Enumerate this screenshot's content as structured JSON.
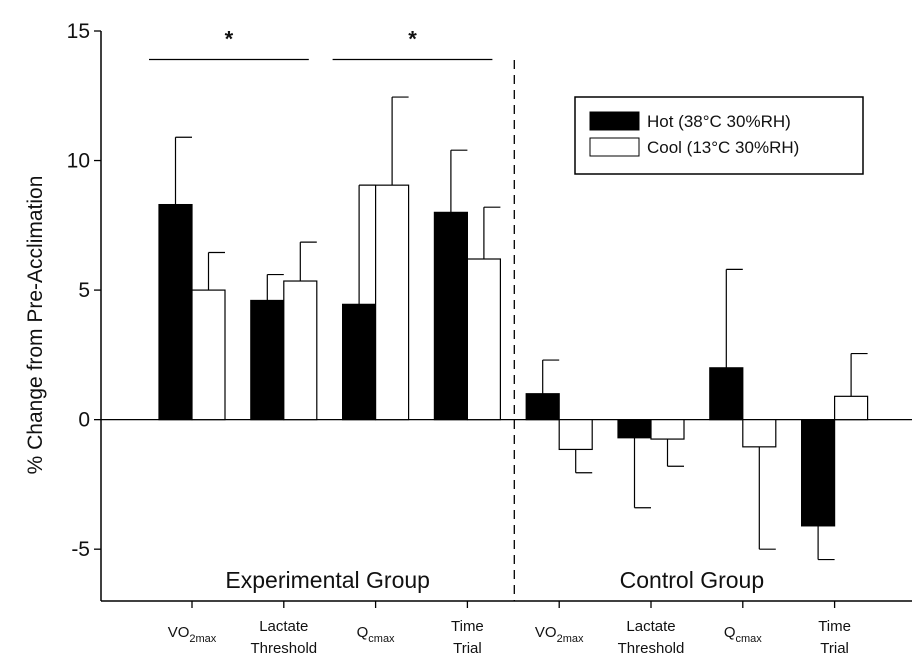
{
  "chart_data": {
    "type": "bar",
    "ylabel": "% Change from Pre-Acclimation",
    "xlabel": "",
    "ylim": [
      -7,
      15
    ],
    "yticks": [
      -5,
      0,
      5,
      10,
      15
    ],
    "groups": [
      "Experimental Group",
      "Control Group"
    ],
    "categories": [
      {
        "label": "VO",
        "sub": "2max"
      },
      {
        "label": "Lactate\nThreshold",
        "sub": ""
      },
      {
        "label": "Q",
        "sub": "cmax"
      },
      {
        "label": "Time\nTrial",
        "sub": ""
      },
      {
        "label": "VO",
        "sub": "2max"
      },
      {
        "label": "Lactate\nThreshold",
        "sub": ""
      },
      {
        "label": "Q",
        "sub": "cmax"
      },
      {
        "label": "Time\nTrial",
        "sub": ""
      }
    ],
    "series": [
      {
        "name": "Hot (38°C 30%RH)",
        "color": "#000000",
        "values": [
          8.3,
          4.6,
          4.45,
          8.0,
          1.0,
          -0.7,
          2.0,
          -4.1
        ],
        "errors": [
          2.6,
          1.0,
          4.6,
          2.4,
          1.3,
          2.7,
          3.8,
          1.3
        ]
      },
      {
        "name": "Cool (13°C 30%RH)",
        "color": "#ffffff",
        "values": [
          5.0,
          5.35,
          9.05,
          6.2,
          -1.15,
          -0.75,
          -1.05,
          0.9
        ],
        "errors": [
          1.45,
          1.5,
          3.4,
          2.0,
          0.9,
          1.05,
          3.95,
          1.65
        ]
      }
    ],
    "significance": [
      {
        "from_category": 0,
        "to_category": 1,
        "y": 13.9,
        "label": "*"
      },
      {
        "from_category": 2,
        "to_category": 3,
        "y": 13.9,
        "label": "*"
      }
    ],
    "legend_position": "top-right",
    "grid": false
  }
}
